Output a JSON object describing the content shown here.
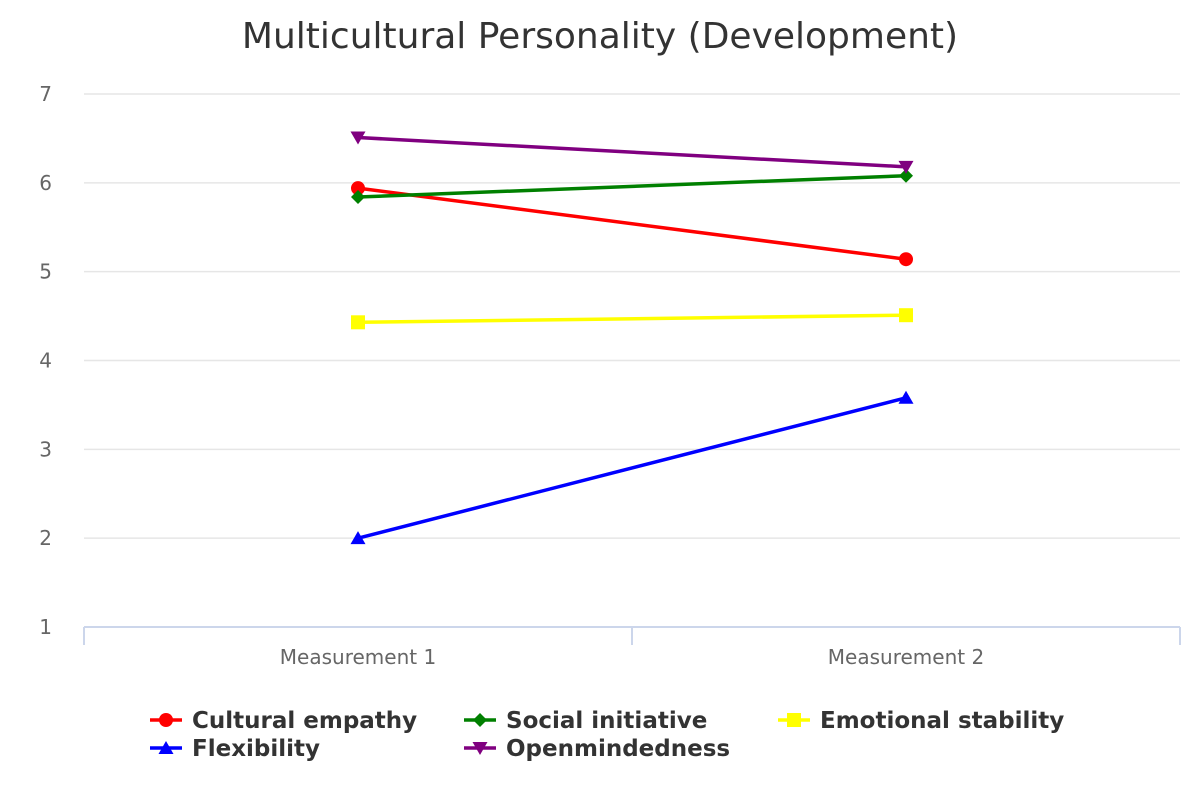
{
  "chart_data": {
    "type": "line",
    "title": "Multicultural Personality (Development)",
    "categories": [
      "Measurement 1",
      "Measurement 2"
    ],
    "ylim": [
      1,
      7
    ],
    "yticks": [
      1,
      2,
      3,
      4,
      5,
      6,
      7
    ],
    "grid": true,
    "legend_position": "bottom",
    "series": [
      {
        "name": "Cultural empathy",
        "values": [
          5.94,
          5.14
        ],
        "color": "#ff0000",
        "marker": "circle"
      },
      {
        "name": "Social initiative",
        "values": [
          5.84,
          6.08
        ],
        "color": "#008000",
        "marker": "diamond"
      },
      {
        "name": "Emotional stability",
        "values": [
          4.43,
          4.51
        ],
        "color": "#ffff00",
        "marker": "square"
      },
      {
        "name": "Flexibility",
        "values": [
          2.0,
          3.58
        ],
        "color": "#0000ff",
        "marker": "triangle-up"
      },
      {
        "name": "Openmindedness",
        "values": [
          6.51,
          6.18
        ],
        "color": "#800080",
        "marker": "triangle-down"
      }
    ]
  }
}
